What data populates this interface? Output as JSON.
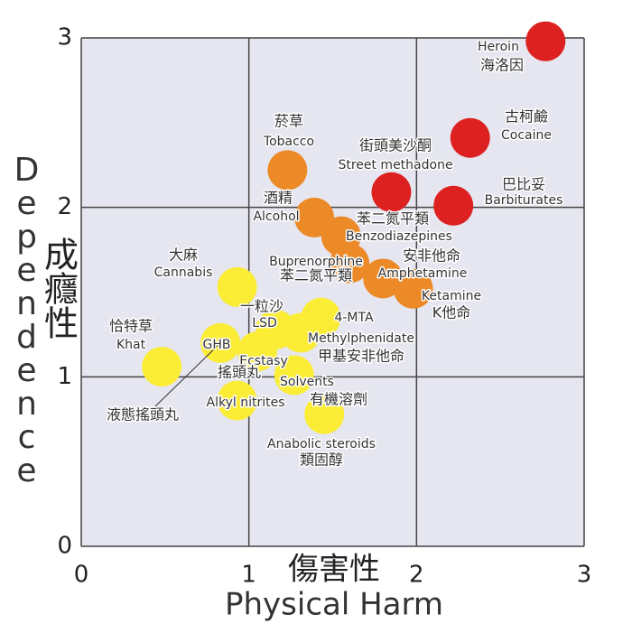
{
  "chart_data": {
    "type": "scatter",
    "xlabel": "Physical Harm",
    "xlabel_zh": "傷害性",
    "ylabel": "Dependence",
    "ylabel_zh": "成癮性",
    "xlim": [
      0,
      3
    ],
    "ylim": [
      0,
      3
    ],
    "xticks": [
      0,
      1,
      2,
      3
    ],
    "yticks": [
      0,
      1,
      2,
      3
    ],
    "grid": true,
    "points": [
      {
        "name": "Heroin",
        "name_zh": "海洛因",
        "x": 2.77,
        "y": 2.98,
        "color": "#dd2020"
      },
      {
        "name": "Cocaine",
        "name_zh": "古柯鹼",
        "x": 2.32,
        "y": 2.41,
        "color": "#dd2020"
      },
      {
        "name": "Street methadone",
        "name_zh": "街頭美沙酮",
        "x": 1.85,
        "y": 2.09,
        "color": "#dd2020"
      },
      {
        "name": "Barbiturates",
        "name_zh": "巴比妥",
        "x": 2.22,
        "y": 2.01,
        "color": "#dd2020"
      },
      {
        "name": "Tobacco",
        "name_zh": "菸草",
        "x": 1.23,
        "y": 2.22,
        "color": "#ec8a28"
      },
      {
        "name": "Alcohol",
        "name_zh": "酒精",
        "x": 1.39,
        "y": 1.94,
        "color": "#ec8a28"
      },
      {
        "name": "Benzodiazepines",
        "name_zh": "苯二氮平類",
        "x": 1.55,
        "y": 1.83,
        "color": "#ec8a28"
      },
      {
        "name": "Buprenorphine",
        "name_zh": "苯二氮平類",
        "x": 1.6,
        "y": 1.67,
        "color": "#ec8a28"
      },
      {
        "name": "Amphetamine",
        "name_zh": "安非他命",
        "x": 1.8,
        "y": 1.58,
        "color": "#ec8a28"
      },
      {
        "name": "Ketamine",
        "name_zh": "K他命",
        "x": 1.98,
        "y": 1.52,
        "color": "#ec8a28"
      },
      {
        "name": "Cannabis",
        "name_zh": "大麻",
        "x": 0.93,
        "y": 1.53,
        "color": "#fbec35"
      },
      {
        "name": "4-MTA",
        "x": 1.43,
        "y": 1.35,
        "color": "#fbec35"
      },
      {
        "name": "LSD",
        "name_zh": "一粒沙",
        "x": 1.16,
        "y": 1.28,
        "color": "#fbec35"
      },
      {
        "name": "Methylphenidate",
        "name_zh": "甲基安非他命",
        "x": 1.31,
        "y": 1.26,
        "color": "#fbec35"
      },
      {
        "name": "GHB",
        "name_zh": "液態搖頭丸",
        "x": 0.83,
        "y": 1.2,
        "color": "#fbec35"
      },
      {
        "name": "Ecstasy",
        "name_zh": "搖頭丸",
        "x": 1.05,
        "y": 1.15,
        "color": "#fbec35"
      },
      {
        "name": "Solvents",
        "name_zh": "有機溶劑",
        "x": 1.27,
        "y": 1.01,
        "color": "#fbec35"
      },
      {
        "name": "Khat",
        "name_zh": "恰特草",
        "x": 0.48,
        "y": 1.06,
        "color": "#fbec35"
      },
      {
        "name": "Alkyl nitrites",
        "x": 0.93,
        "y": 0.86,
        "color": "#fbec35"
      },
      {
        "name": "Anabolic steroids",
        "name_zh": "類固醇",
        "x": 1.45,
        "y": 0.78,
        "color": "#fbec35"
      }
    ]
  }
}
